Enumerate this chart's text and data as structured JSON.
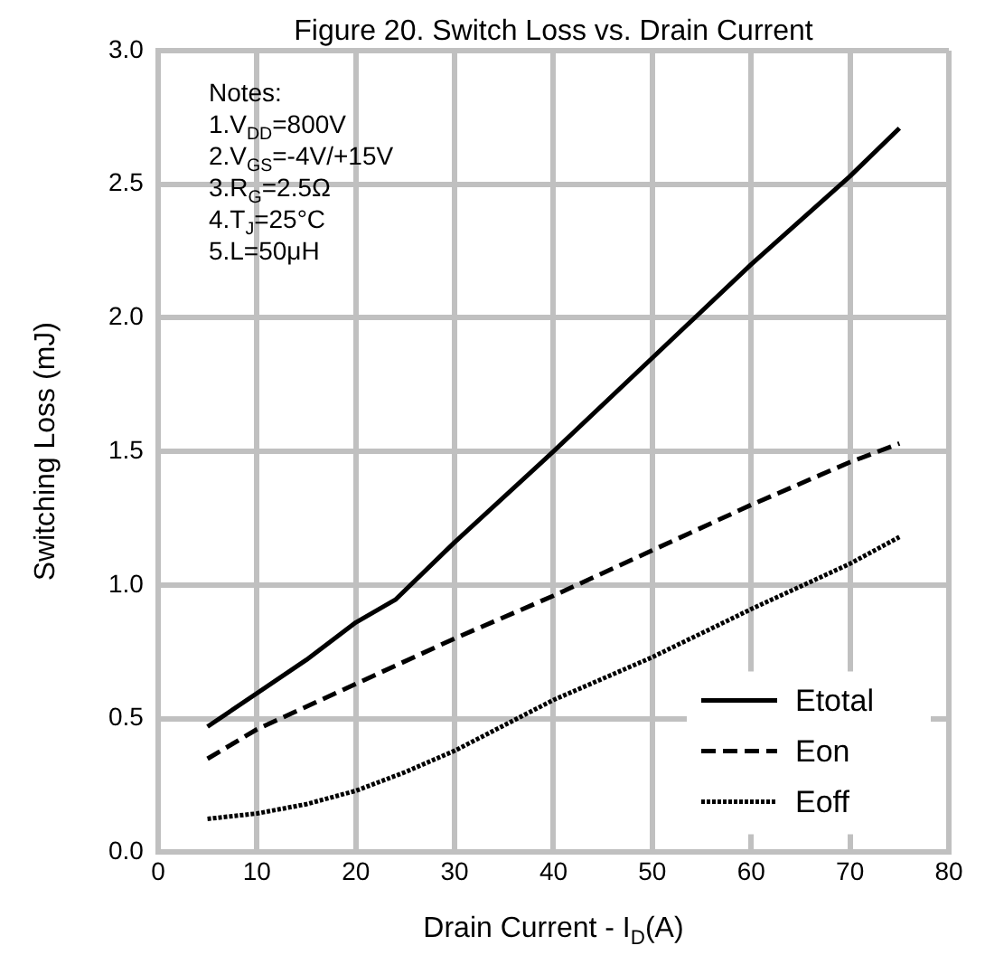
{
  "chart_data": {
    "type": "line",
    "title": "Figure 20. Switch Loss vs. Drain Current",
    "xlabel": "Drain Current - I$_{D}$(A)",
    "ylabel": "Switching Loss (mJ)",
    "annotations": [
      "Notes:",
      "1.V$_{DD}$=800V",
      "2.V$_{GS}$=-4V/+15V",
      "3.R$_{G}$=2.5Ω",
      "4.T$_{J}$=25°C",
      "5.L=50μH"
    ],
    "xlim": [
      0,
      80
    ],
    "xticks": [
      0,
      10,
      20,
      30,
      40,
      50,
      60,
      70,
      80
    ],
    "ylim": [
      0,
      3
    ],
    "yticks": [
      {
        "value": 0,
        "label": "0.0"
      },
      {
        "value": 0.5,
        "label": "0.5"
      },
      {
        "value": 1,
        "label": "1.0"
      },
      {
        "value": 1.5,
        "label": "1.5"
      },
      {
        "value": 2,
        "label": "2.0"
      },
      {
        "value": 2.5,
        "label": "2.5"
      },
      {
        "value": 3,
        "label": "3.0"
      }
    ],
    "grid": true,
    "legend": "bottom right",
    "marker": "none",
    "series": [
      {
        "name": "Etotal",
        "color": "#000000",
        "line_style": "solid",
        "x": [
          5,
          15,
          20,
          24,
          30,
          40,
          50,
          60,
          70,
          75
        ],
        "values": [
          0.47,
          0.72,
          0.86,
          0.945,
          1.16,
          1.5,
          1.85,
          2.2,
          2.53,
          2.71
        ]
      },
      {
        "name": "Eon",
        "color": "#000000",
        "line_style": "dashed",
        "x": [
          5,
          10,
          20,
          30,
          40,
          50,
          60,
          70,
          75
        ],
        "values": [
          0.35,
          0.46,
          0.63,
          0.8,
          0.96,
          1.13,
          1.3,
          1.46,
          1.53
        ]
      },
      {
        "name": "Eoff",
        "color": "#000000",
        "line_style": "dotted",
        "x": [
          5,
          10,
          15,
          20,
          25,
          30,
          40,
          50,
          60,
          70,
          75
        ],
        "values": [
          0.125,
          0.145,
          0.18,
          0.23,
          0.3,
          0.38,
          0.57,
          0.73,
          0.91,
          1.08,
          1.18
        ]
      }
    ]
  }
}
